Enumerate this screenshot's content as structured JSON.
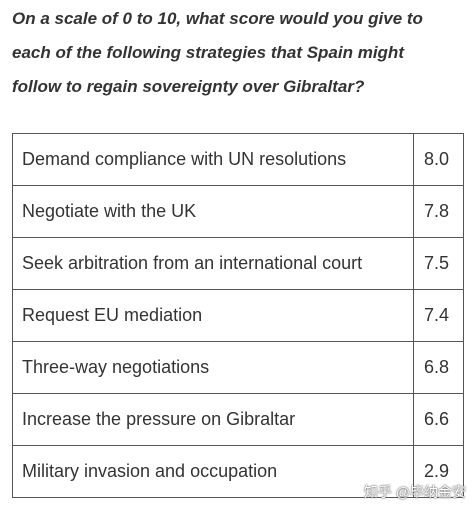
{
  "question": "On a scale of 0 to 10, what score would you give to each of the following strategies that Spain might follow to regain sovereignty over Gibraltar?",
  "table": {
    "rows": [
      [
        "Demand compliance with UN resolutions",
        "8.0"
      ],
      [
        "Negotiate with the UK",
        "7.8"
      ],
      [
        "Seek arbitration from an international court",
        "7.5"
      ],
      [
        "Request EU mediation",
        "7.4"
      ],
      [
        "Three-way negotiations",
        "6.8"
      ],
      [
        "Increase the pressure on Gibraltar",
        "6.6"
      ],
      [
        "Military invasion and occupation",
        "2.9"
      ]
    ]
  },
  "watermark": "知乎 @毕纳金安"
}
